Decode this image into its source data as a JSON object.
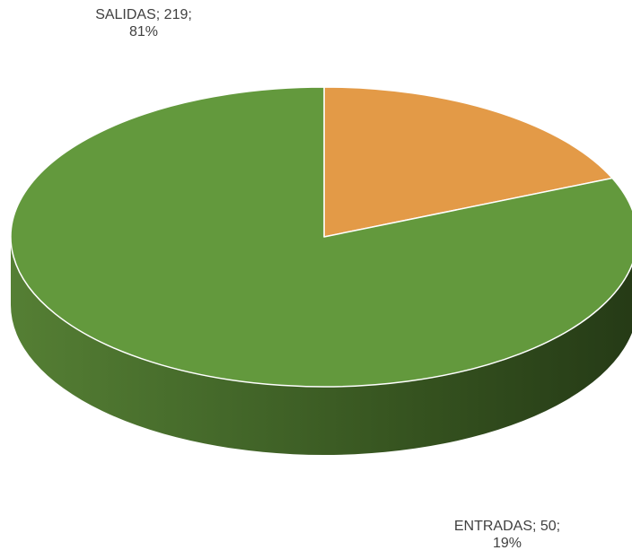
{
  "chart_data": {
    "type": "pie",
    "style": "3d",
    "categories": [
      "ENTRADAS",
      "SALIDAS"
    ],
    "values": [
      50,
      219
    ],
    "percentages": [
      19,
      81
    ],
    "colors": [
      "#E39A47",
      "#63993D"
    ],
    "data_labels": [
      {
        "category": "SALIDAS",
        "line1": "SALIDAS; 219;",
        "line2": "81%"
      },
      {
        "category": "ENTRADAS",
        "line1": "ENTRADAS; 50;",
        "line2": "19%"
      }
    ],
    "legend": "none",
    "title": ""
  }
}
